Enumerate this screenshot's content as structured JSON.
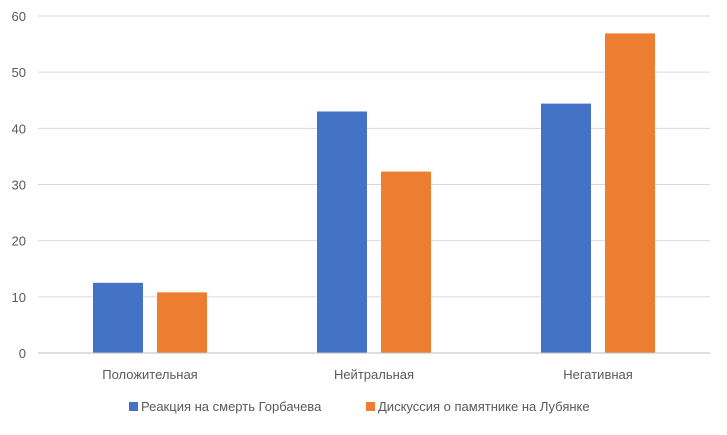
{
  "chart_data": {
    "type": "bar",
    "categories": [
      "Положительная",
      "Нейтральная",
      "Негативная"
    ],
    "series": [
      {
        "name": "Реакция на смерть Горбачева",
        "color": "#4472C4",
        "values": [
          12.5,
          43.0,
          44.4
        ]
      },
      {
        "name": "Дискуссия о памятнике на Лубянке",
        "color": "#ED7D31",
        "values": [
          10.8,
          32.3,
          56.9
        ]
      }
    ],
    "title": "",
    "xlabel": "",
    "ylabel": "",
    "ylim": [
      0,
      60
    ],
    "yticks": [
      0,
      10,
      20,
      30,
      40,
      50,
      60
    ],
    "grid": true,
    "legend": "bottom"
  }
}
